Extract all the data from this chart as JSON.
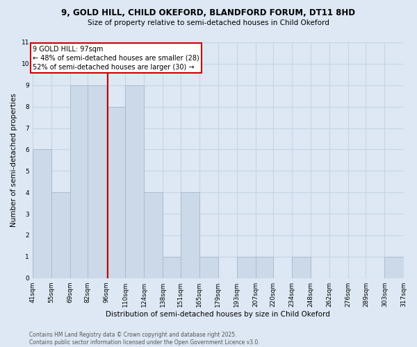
{
  "title1": "9, GOLD HILL, CHILD OKEFORD, BLANDFORD FORUM, DT11 8HD",
  "title2": "Size of property relative to semi-detached houses in Child Okeford",
  "xlabel": "Distribution of semi-detached houses by size in Child Okeford",
  "ylabel": "Number of semi-detached properties",
  "footer1": "Contains HM Land Registry data © Crown copyright and database right 2025.",
  "footer2": "Contains public sector information licensed under the Open Government Licence v3.0.",
  "annotation_title": "9 GOLD HILL: 97sqm",
  "annotation_line1": "← 48% of semi-detached houses are smaller (28)",
  "annotation_line2": "52% of semi-detached houses are larger (30) →",
  "property_size": 97,
  "bar_left_edges": [
    41,
    55,
    69,
    82,
    96,
    110,
    124,
    138,
    151,
    165,
    179,
    193,
    207,
    220,
    234,
    248,
    262,
    276,
    289,
    303
  ],
  "bar_heights": [
    6,
    4,
    9,
    9,
    8,
    9,
    4,
    1,
    4,
    1,
    0,
    1,
    1,
    0,
    1,
    0,
    0,
    0,
    0,
    1
  ],
  "tick_labels": [
    "41sqm",
    "55sqm",
    "69sqm",
    "82sqm",
    "96sqm",
    "110sqm",
    "124sqm",
    "138sqm",
    "151sqm",
    "165sqm",
    "179sqm",
    "193sqm",
    "207sqm",
    "220sqm",
    "234sqm",
    "248sqm",
    "262sqm",
    "276sqm",
    "289sqm",
    "303sqm",
    "317sqm"
  ],
  "bar_color": "#ccd9e8",
  "bar_edge_color": "#a8bdd0",
  "grid_color": "#c8d4e4",
  "vline_color": "#cc0000",
  "annotation_box_color": "#cc0000",
  "ylim": [
    0,
    11
  ],
  "yticks": [
    0,
    1,
    2,
    3,
    4,
    5,
    6,
    7,
    8,
    9,
    10,
    11
  ],
  "bg_color": "#dde8f4"
}
